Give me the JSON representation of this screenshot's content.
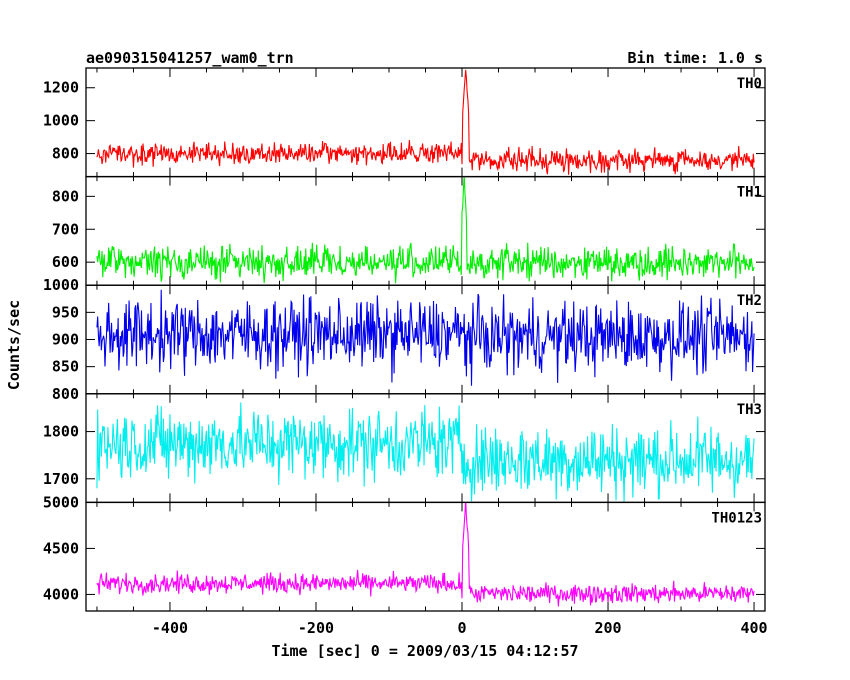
{
  "chart_data": {
    "type": "line",
    "title_left": "ae090315041257_wam0_trn",
    "title_right": "Bin time: 1.0 s",
    "xlabel": "Time [sec] 0 = 2009/03/15 04:12:57",
    "ylabel": "Counts/sec",
    "xlim": [
      -515,
      415
    ],
    "x_range": [
      -500,
      400
    ],
    "x_ticks": [
      -400,
      -200,
      0,
      200,
      400
    ],
    "panels": [
      {
        "name": "TH0",
        "color": "#ff0000",
        "ylim": [
          660,
          1320
        ],
        "y_ticks": [
          800,
          1000,
          1200
        ],
        "mean_before": 800,
        "mean_after": 760,
        "noise": 55,
        "peak": {
          "time": 5,
          "value": 1320,
          "width": 4
        }
      },
      {
        "name": "TH1",
        "color": "#00ee00",
        "ylim": [
          530,
          860
        ],
        "y_ticks": [
          600,
          700,
          800
        ],
        "mean_before": 600,
        "mean_after": 600,
        "noise": 42,
        "peak": {
          "time": 3,
          "value": 850,
          "width": 3
        }
      },
      {
        "name": "TH2",
        "color": "#0000ee",
        "ylim": [
          800,
          1000
        ],
        "y_ticks": [
          800,
          850,
          900,
          950,
          1000
        ],
        "mean_before": 910,
        "mean_after": 905,
        "noise": 55,
        "peak": null
      },
      {
        "name": "TH3",
        "color": "#00eeee",
        "ylim": [
          1650,
          1880
        ],
        "y_ticks": [
          1700,
          1800
        ],
        "mean_before": 1775,
        "mean_after": 1740,
        "noise": 65,
        "peak": null
      },
      {
        "name": "TH0123",
        "color": "#ff00ff",
        "ylim": [
          3820,
          5000
        ],
        "y_ticks": [
          4000,
          4500,
          5000
        ],
        "mean_before": 4120,
        "mean_after": 4010,
        "noise": 90,
        "peak": {
          "time": 5,
          "value": 5000,
          "width": 4
        }
      }
    ]
  }
}
